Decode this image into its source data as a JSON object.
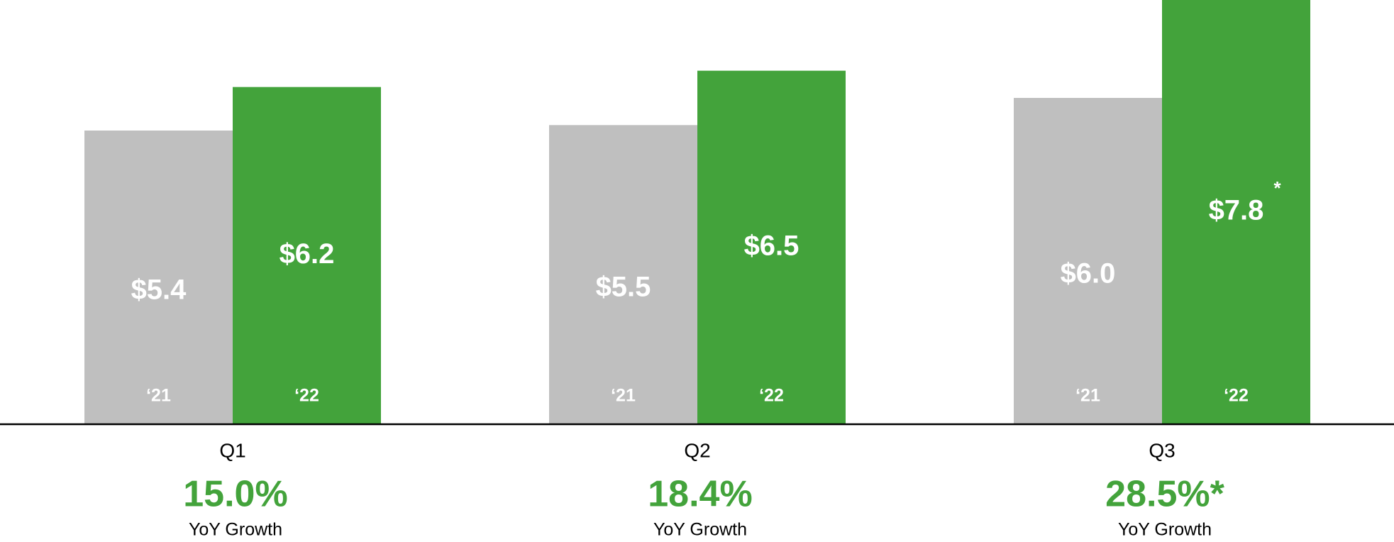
{
  "chart_data": {
    "type": "bar",
    "categories": [
      "Q1",
      "Q2",
      "Q3"
    ],
    "series": [
      {
        "name": "‘21",
        "color": "#bfbfbf",
        "values": [
          5.4,
          5.5,
          6.0
        ],
        "value_labels": [
          "$5.4",
          "$5.5",
          "$6.0"
        ]
      },
      {
        "name": "‘22",
        "color": "#43a33b",
        "values": [
          6.2,
          6.5,
          7.8
        ],
        "value_labels": [
          "$6.2",
          "$6.5",
          "$7.8"
        ]
      }
    ],
    "ylim": [
      0,
      7.8
    ],
    "annotation": "*",
    "growth_labels": [
      "15.0%",
      "18.4%",
      "28.5%*"
    ],
    "growth_caption": "YoY Growth",
    "growth_color": "#43a33b"
  }
}
